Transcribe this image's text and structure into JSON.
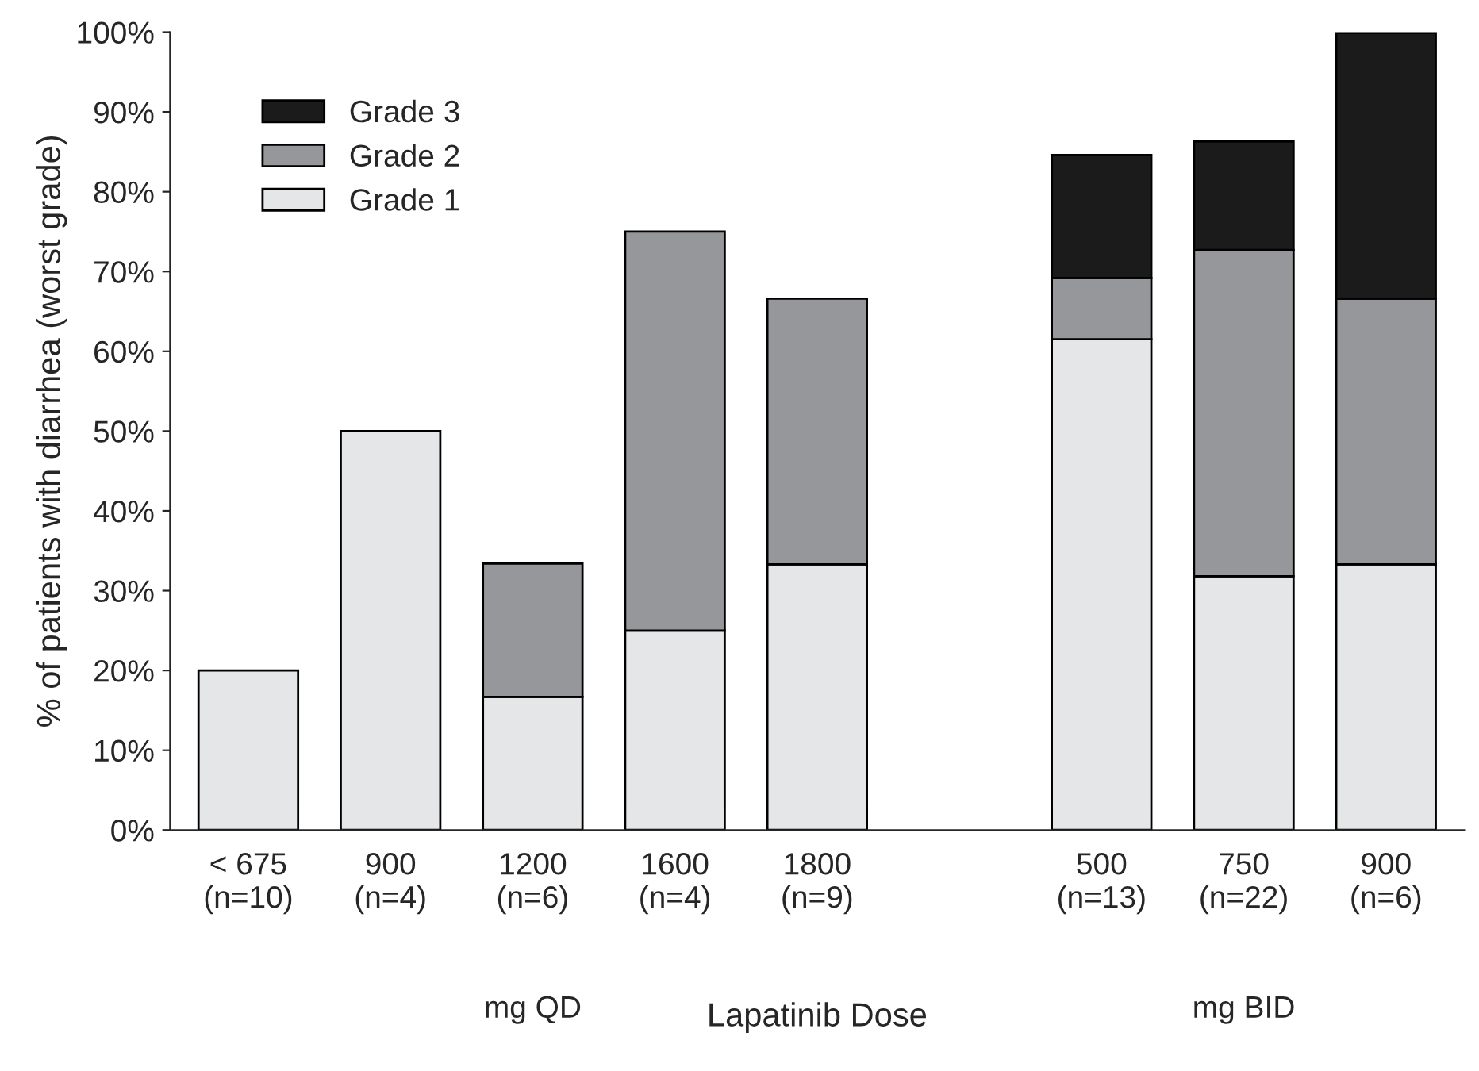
{
  "chart_data": {
    "type": "bar",
    "stacked": true,
    "xlabel": "Lapatinib Dose",
    "ylabel": "% of patients with diarrhea (worst grade)",
    "categories": [
      "< 675\n(n=10)",
      "900\n(n=4)",
      "1200\n(n=6)",
      "1600\n(n=4)",
      "1800\n(n=9)",
      null,
      "500\n(n=13)",
      "750\n(n=22)",
      "900\n(n=6)"
    ],
    "series": [
      {
        "name": "Grade 1",
        "color": "#e5e6e8",
        "values": [
          20,
          50,
          16.7,
          25,
          33.3,
          null,
          61.5,
          31.8,
          33.3
        ]
      },
      {
        "name": "Grade 2",
        "color": "#96979b",
        "values": [
          0,
          0,
          16.7,
          50,
          33.3,
          null,
          7.7,
          40.9,
          33.3
        ]
      },
      {
        "name": "Grade 3",
        "color": "#1b1b1b",
        "values": [
          0,
          0,
          0,
          0,
          0,
          null,
          15.4,
          13.6,
          33.3
        ]
      }
    ],
    "ylim": [
      0,
      100
    ],
    "yticks": [
      {
        "value": 0,
        "label": "0%"
      },
      {
        "value": 10,
        "label": "10%"
      },
      {
        "value": 20,
        "label": "20%"
      },
      {
        "value": 30,
        "label": "30%"
      },
      {
        "value": 40,
        "label": "40%"
      },
      {
        "value": 50,
        "label": "50%"
      },
      {
        "value": 60,
        "label": "60%"
      },
      {
        "value": 70,
        "label": "70%"
      },
      {
        "value": 80,
        "label": "80%"
      },
      {
        "value": 90,
        "label": "90%"
      },
      {
        "value": 100,
        "label": "100%"
      }
    ],
    "annotations": [
      "mg QD",
      "mg BID"
    ],
    "legend": "top left",
    "grid": false
  }
}
